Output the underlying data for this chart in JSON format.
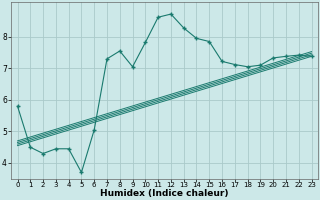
{
  "title": "",
  "xlabel": "Humidex (Indice chaleur)",
  "bg_color": "#cce8e8",
  "grid_color": "#aacaca",
  "line_color": "#1a7a6e",
  "xlim": [
    -0.5,
    23.5
  ],
  "ylim": [
    3.5,
    9.1
  ],
  "xticks": [
    0,
    1,
    2,
    3,
    4,
    5,
    6,
    7,
    8,
    9,
    10,
    11,
    12,
    13,
    14,
    15,
    16,
    17,
    18,
    19,
    20,
    21,
    22,
    23
  ],
  "yticks": [
    4,
    5,
    6,
    7,
    8
  ],
  "main_line_x": [
    0,
    1,
    2,
    3,
    4,
    5,
    6,
    7,
    8,
    9,
    10,
    11,
    12,
    13,
    14,
    15,
    16,
    17,
    18,
    19,
    20,
    21,
    22,
    23
  ],
  "main_line_y": [
    5.8,
    4.5,
    4.3,
    4.45,
    4.45,
    3.7,
    5.05,
    7.3,
    7.55,
    7.05,
    7.82,
    8.62,
    8.72,
    8.28,
    7.95,
    7.85,
    7.22,
    7.12,
    7.05,
    7.1,
    7.33,
    7.38,
    7.42,
    7.38
  ],
  "straight_lines": [
    {
      "x": [
        0,
        23
      ],
      "y": [
        4.55,
        7.38
      ]
    },
    {
      "x": [
        0,
        23
      ],
      "y": [
        4.6,
        7.43
      ]
    },
    {
      "x": [
        0,
        23
      ],
      "y": [
        4.65,
        7.48
      ]
    },
    {
      "x": [
        0,
        23
      ],
      "y": [
        4.7,
        7.53
      ]
    }
  ],
  "xlabel_fontsize": 6.5,
  "xlabel_bold": true,
  "tick_fontsize": 5.0,
  "ytick_fontsize": 5.5
}
